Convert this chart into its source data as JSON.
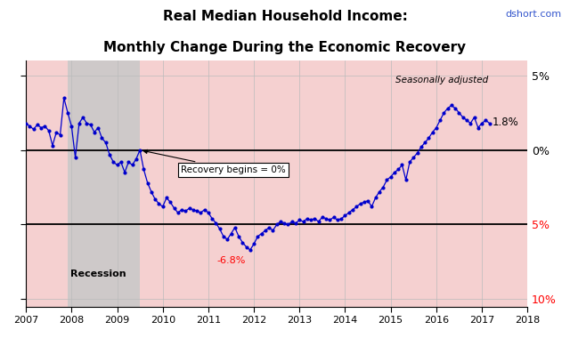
{
  "title_line1": "Real Median Household Income:",
  "title_line2": "Monthly Change During the Economic Recovery",
  "watermark": "dshort.com",
  "xlim": [
    2007.0,
    2018.0
  ],
  "ylim": [
    -10.5,
    6.0
  ],
  "recession_start": 2007.917,
  "recession_end": 2009.5,
  "pink_bg_color": "#f5d0d0",
  "recession_gray_color": "#c8c8c8",
  "line_color": "#0000cc",
  "marker_color": "#0000cc",
  "annotation_recovery": "Recovery begins = 0%",
  "annotation_min": "-6.8%",
  "annotation_latest": "1.8%",
  "annotation_sa": "Seasonally adjusted",
  "hline_color": "black",
  "bg_color": "#ffffff",
  "data_x": [
    2007.0,
    2007.083,
    2007.167,
    2007.25,
    2007.333,
    2007.417,
    2007.5,
    2007.583,
    2007.667,
    2007.75,
    2007.833,
    2007.917,
    2008.0,
    2008.083,
    2008.167,
    2008.25,
    2008.333,
    2008.417,
    2008.5,
    2008.583,
    2008.667,
    2008.75,
    2008.833,
    2008.917,
    2009.0,
    2009.083,
    2009.167,
    2009.25,
    2009.333,
    2009.417,
    2009.5,
    2009.583,
    2009.667,
    2009.75,
    2009.833,
    2009.917,
    2010.0,
    2010.083,
    2010.167,
    2010.25,
    2010.333,
    2010.417,
    2010.5,
    2010.583,
    2010.667,
    2010.75,
    2010.833,
    2010.917,
    2011.0,
    2011.083,
    2011.167,
    2011.25,
    2011.333,
    2011.417,
    2011.5,
    2011.583,
    2011.667,
    2011.75,
    2011.833,
    2011.917,
    2012.0,
    2012.083,
    2012.167,
    2012.25,
    2012.333,
    2012.417,
    2012.5,
    2012.583,
    2012.667,
    2012.75,
    2012.833,
    2012.917,
    2013.0,
    2013.083,
    2013.167,
    2013.25,
    2013.333,
    2013.417,
    2013.5,
    2013.583,
    2013.667,
    2013.75,
    2013.833,
    2013.917,
    2014.0,
    2014.083,
    2014.167,
    2014.25,
    2014.333,
    2014.417,
    2014.5,
    2014.583,
    2014.667,
    2014.75,
    2014.833,
    2014.917,
    2015.0,
    2015.083,
    2015.167,
    2015.25,
    2015.333,
    2015.417,
    2015.5,
    2015.583,
    2015.667,
    2015.75,
    2015.833,
    2015.917,
    2016.0,
    2016.083,
    2016.167,
    2016.25,
    2016.333,
    2016.417,
    2016.5,
    2016.583,
    2016.667,
    2016.75,
    2016.833,
    2016.917,
    2017.0,
    2017.083,
    2017.167
  ],
  "data_y": [
    1.8,
    1.6,
    1.4,
    1.7,
    1.5,
    1.6,
    1.3,
    0.3,
    1.2,
    1.0,
    3.5,
    2.5,
    1.6,
    -0.5,
    1.8,
    2.2,
    1.8,
    1.7,
    1.2,
    1.5,
    0.8,
    0.5,
    -0.3,
    -0.8,
    -1.0,
    -0.8,
    -1.5,
    -0.8,
    -1.0,
    -0.6,
    0.0,
    -1.3,
    -2.2,
    -2.8,
    -3.3,
    -3.6,
    -3.8,
    -3.2,
    -3.5,
    -3.9,
    -4.2,
    -4.0,
    -4.1,
    -3.9,
    -4.0,
    -4.1,
    -4.2,
    -4.0,
    -4.2,
    -4.6,
    -4.9,
    -5.3,
    -5.8,
    -6.0,
    -5.6,
    -5.2,
    -5.8,
    -6.2,
    -6.5,
    -6.7,
    -6.3,
    -5.8,
    -5.6,
    -5.4,
    -5.2,
    -5.4,
    -5.0,
    -4.8,
    -4.9,
    -5.0,
    -4.8,
    -4.9,
    -4.7,
    -4.8,
    -4.6,
    -4.7,
    -4.6,
    -4.8,
    -4.5,
    -4.6,
    -4.7,
    -4.5,
    -4.7,
    -4.6,
    -4.4,
    -4.2,
    -4.0,
    -3.8,
    -3.6,
    -3.5,
    -3.4,
    -3.8,
    -3.2,
    -2.8,
    -2.5,
    -2.0,
    -1.8,
    -1.5,
    -1.3,
    -1.0,
    -2.0,
    -0.8,
    -0.5,
    -0.2,
    0.2,
    0.5,
    0.8,
    1.2,
    1.5,
    2.0,
    2.5,
    2.8,
    3.0,
    2.8,
    2.5,
    2.2,
    2.0,
    1.8,
    2.2,
    1.5,
    1.8,
    2.0,
    1.8
  ],
  "min_x": 2011.75,
  "min_y": -6.8,
  "latest_x": 2017.083,
  "latest_y": 1.8
}
